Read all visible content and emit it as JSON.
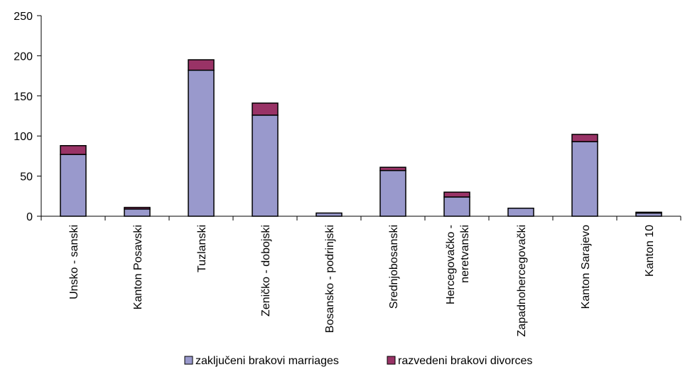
{
  "chart_data": {
    "type": "bar",
    "stacked": true,
    "categories": [
      "Unsko - sanski",
      "Kanton Posavski",
      "Tuzlanski",
      "Zeničko - dobojski",
      "Bosansko - podrinjski",
      "Srednjobosanski",
      "Hercegovačko - neretvanski",
      "Zapadnohercegovački",
      "Kanton Sarajevo",
      "Kanton 10"
    ],
    "category_lines": [
      [
        "Unsko - sanski"
      ],
      [
        "Kanton Posavski"
      ],
      [
        "Tuzlanski"
      ],
      [
        "Zeničko - dobojski"
      ],
      [
        "Bosansko - podrinjski"
      ],
      [
        "Srednjobosanski"
      ],
      [
        "Hercegovačko -",
        "neretvanski"
      ],
      [
        "Zapadnohercegovački"
      ],
      [
        "Kanton Sarajevo"
      ],
      [
        "Kanton 10"
      ]
    ],
    "series": [
      {
        "name": "zaključeni brakovi marriages",
        "color": "#9999CC",
        "values": [
          77,
          9,
          182,
          126,
          4,
          57,
          24,
          10,
          93,
          4
        ]
      },
      {
        "name": "razvedeni brakovi divorces",
        "color": "#993366",
        "values": [
          11,
          2,
          13,
          15,
          0,
          4,
          6,
          0,
          9,
          1
        ]
      }
    ],
    "yticks": [
      0,
      50,
      100,
      150,
      200,
      250
    ],
    "ylim": [
      0,
      250
    ],
    "title": "",
    "xlabel": "",
    "ylabel": "",
    "grid": false,
    "legend_position": "bottom"
  }
}
